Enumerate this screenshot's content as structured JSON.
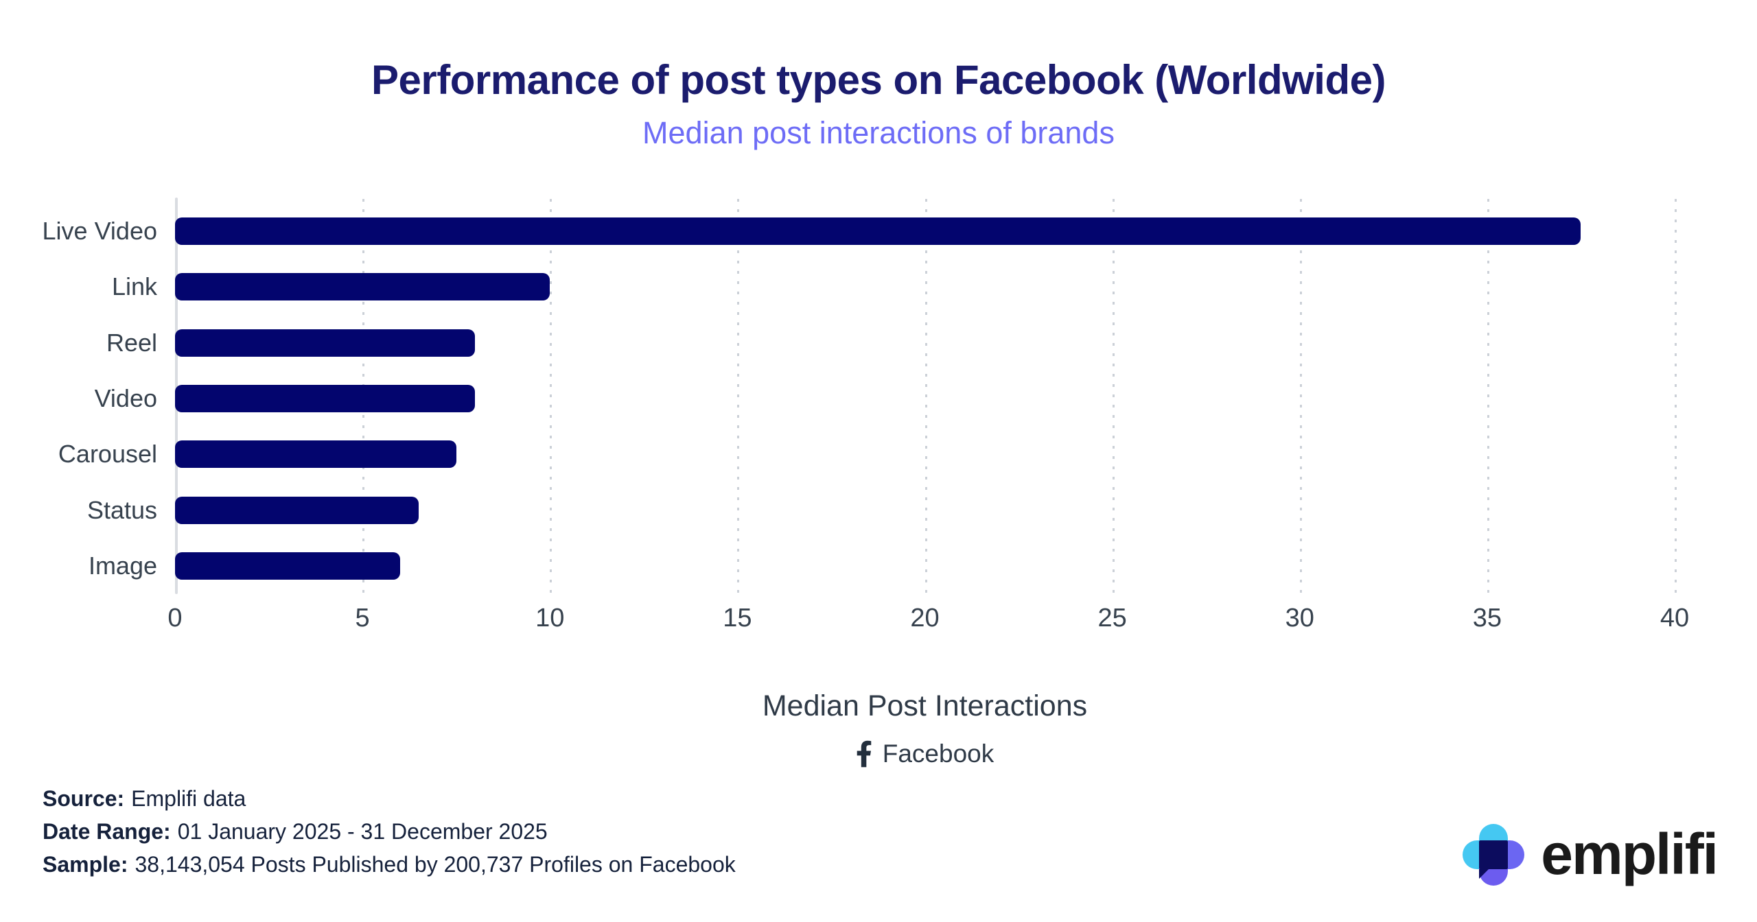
{
  "header": {
    "title": "Performance of post types on Facebook (Worldwide)",
    "subtitle": "Median post interactions of brands",
    "title_color": "#1B1C6E",
    "subtitle_color": "#6D6CF6"
  },
  "chart_data": {
    "type": "bar",
    "orientation": "horizontal",
    "title": "Performance of post types on Facebook (Worldwide)",
    "subtitle": "Median post interactions of brands",
    "categories": [
      "Live Video",
      "Link",
      "Reel",
      "Video",
      "Carousel",
      "Status",
      "Image"
    ],
    "values": [
      37.5,
      10,
      8,
      8,
      7.5,
      6.5,
      6
    ],
    "xlabel": "Median Post Interactions",
    "ylabel": "",
    "xlim": [
      0,
      40
    ],
    "xticks": [
      0,
      5,
      10,
      15,
      20,
      25,
      30,
      35,
      40
    ],
    "grid": "vertical-dotted",
    "legend": "none",
    "bar_color": "#03056E"
  },
  "axis": {
    "x_title": "Median Post Interactions",
    "platform_label": "Facebook"
  },
  "footer": {
    "source_label": "Source:",
    "source_value": "Emplifi data",
    "date_range_label": "Date Range:",
    "date_range_value": "01 January 2025 - 31 December 2025",
    "sample_label": "Sample:",
    "sample_value": "38,143,054 Posts Published by 200,737 Profiles on Facebook"
  },
  "branding": {
    "logo_text": "emplifi",
    "logo_cyan": "#45C8F2",
    "logo_purple": "#6C5CEF",
    "logo_navy": "#0C0C5E"
  }
}
